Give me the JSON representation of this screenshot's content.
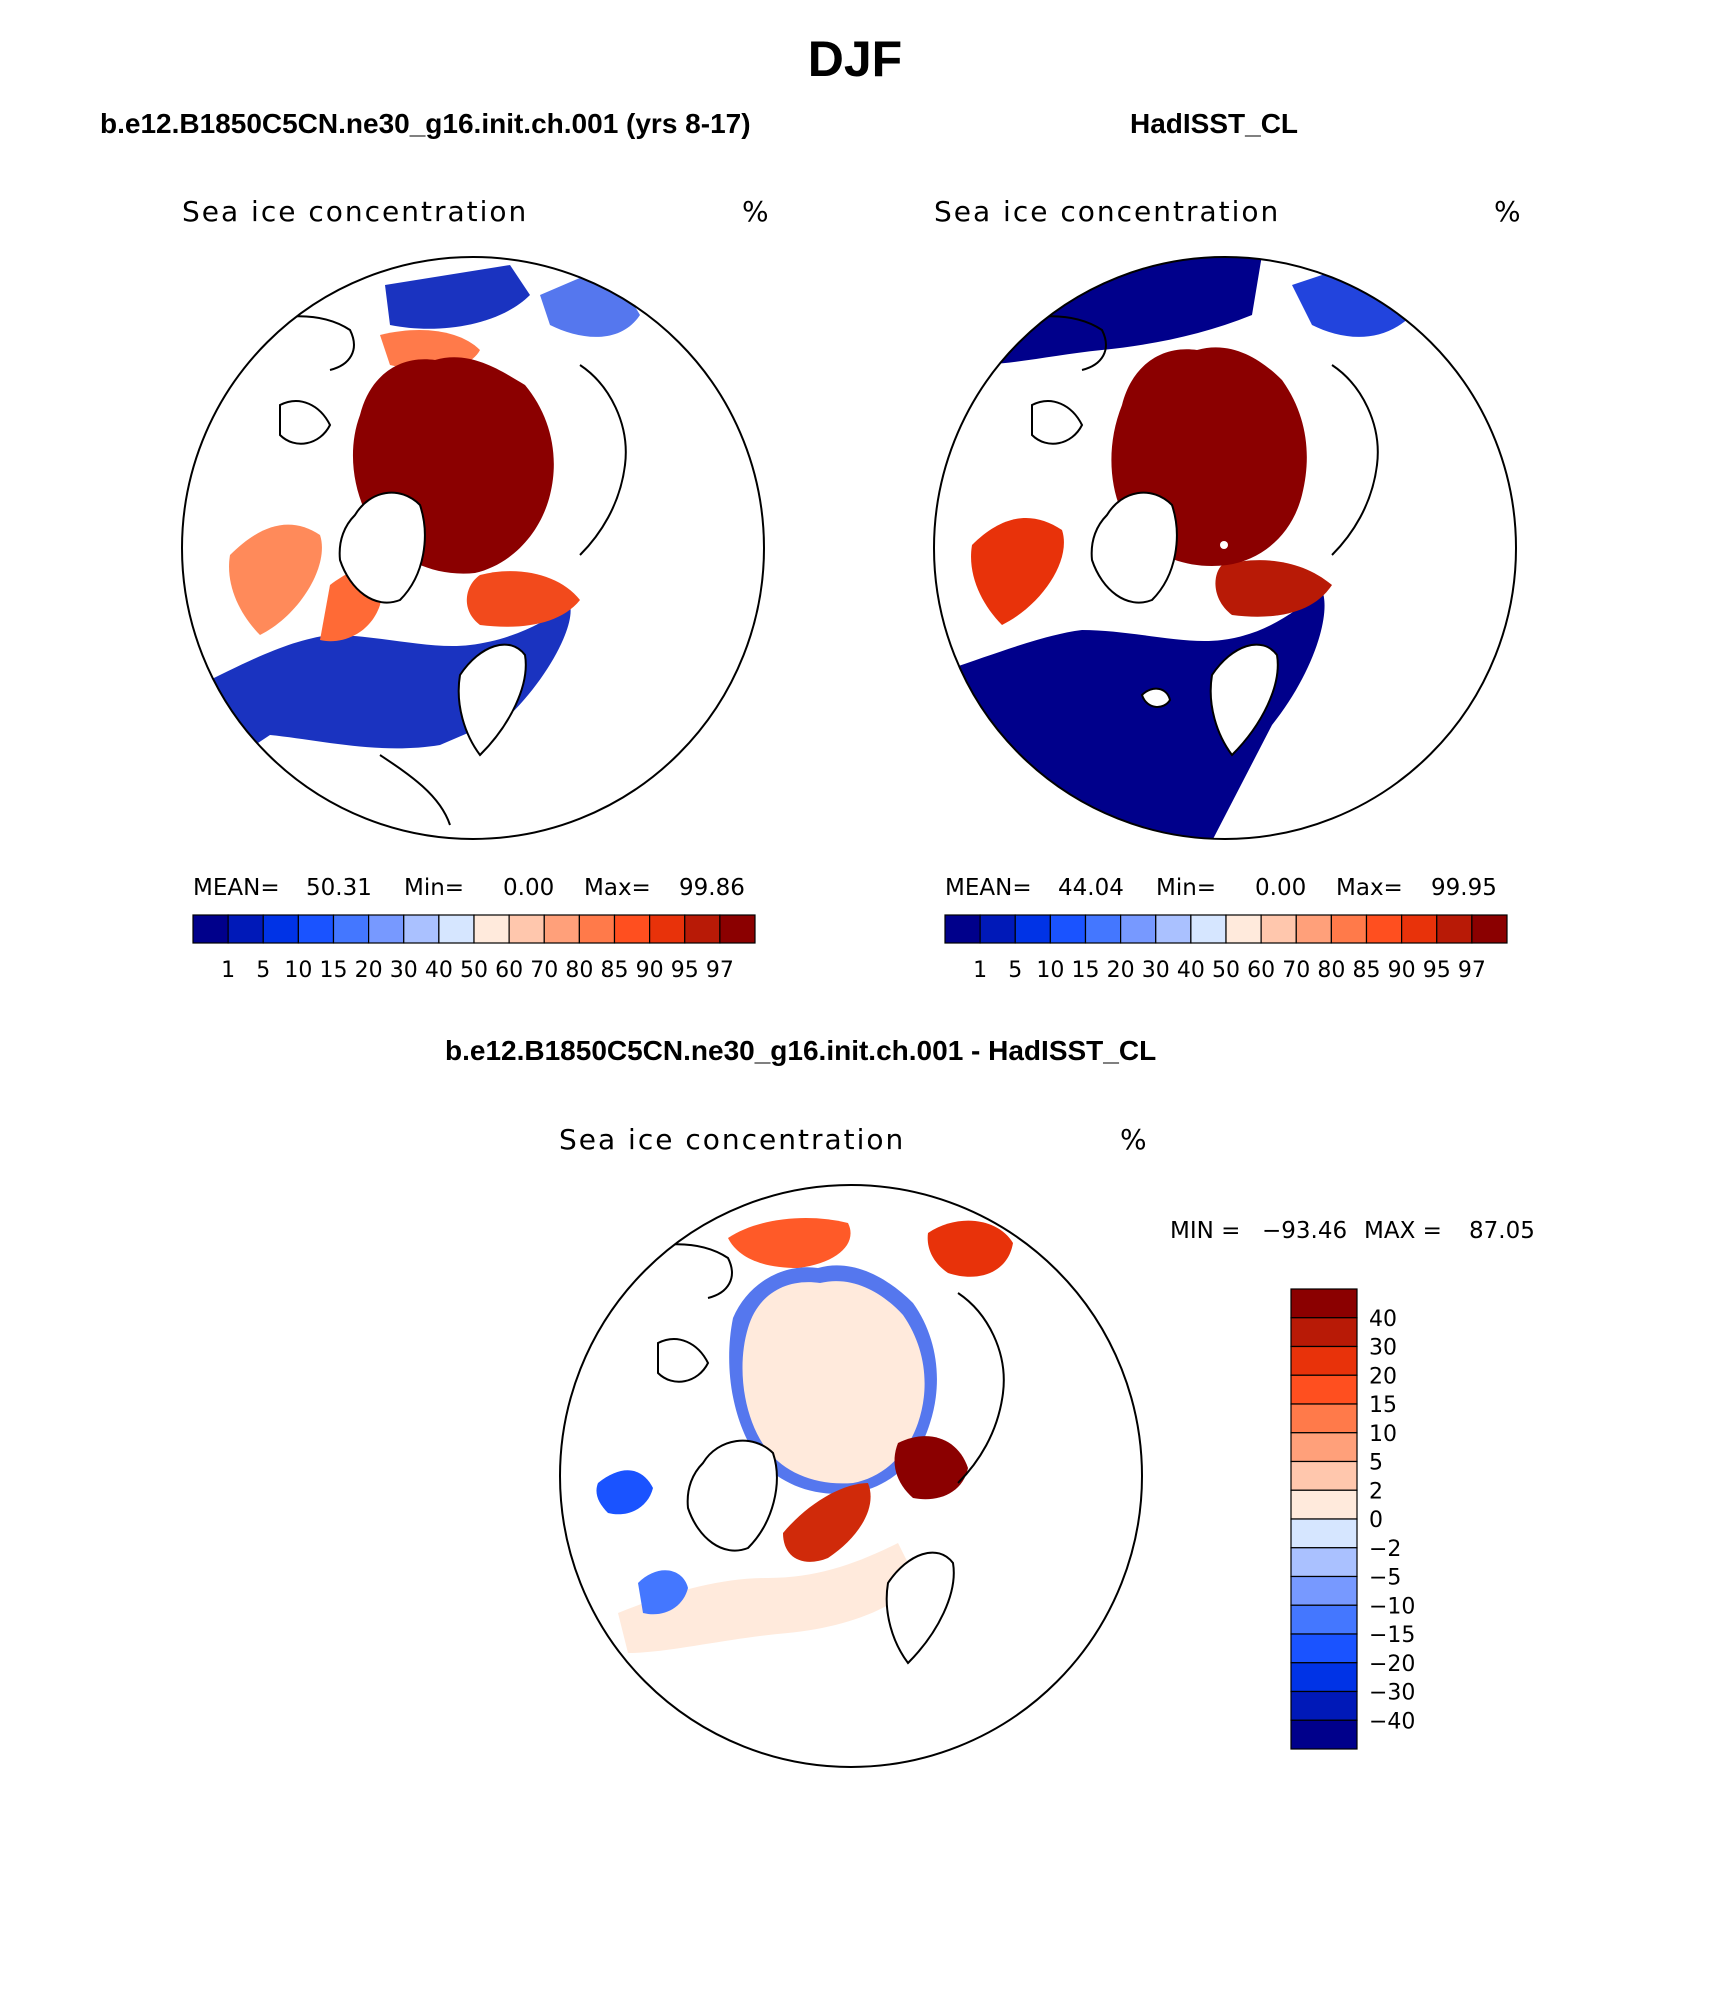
{
  "page": {
    "title": "DJF"
  },
  "panels": [
    {
      "id": "model",
      "title": "b.e12.B1850C5CN.ne30_g16.init.ch.001 (yrs 8-17)",
      "variable": "Sea ice concentration",
      "units": "%",
      "stats": {
        "mean_label": "MEAN=",
        "mean": "50.31",
        "min_label": "Min=",
        "min": "0.00",
        "max_label": "Max=",
        "max": "99.86"
      }
    },
    {
      "id": "obs",
      "title": "HadISST_CL",
      "variable": "Sea ice concentration",
      "units": "%",
      "stats": {
        "mean_label": "MEAN=",
        "mean": "44.04",
        "min_label": "Min=",
        "min": "0.00",
        "max_label": "Max=",
        "max": "99.95"
      }
    },
    {
      "id": "diff",
      "title": "b.e12.B1850C5CN.ne30_g16.init.ch.001 - HadISST_CL",
      "variable": "Sea ice concentration",
      "units": "%",
      "stats": {
        "min_label": "MIN =",
        "min": "−93.46",
        "max_label": "MAX =",
        "max": "87.05"
      }
    }
  ],
  "colorbars": {
    "concentration": {
      "colors": [
        "#00008b",
        "#0019b8",
        "#0033e6",
        "#1a53ff",
        "#4477ff",
        "#7799ff",
        "#aac1ff",
        "#d6e6ff",
        "#ffeadc",
        "#ffc7ad",
        "#ffa07a",
        "#ff7a4a",
        "#ff4f1f",
        "#e8320a",
        "#b81a06",
        "#8b0000"
      ],
      "labels": [
        "1",
        "5",
        "10",
        "15",
        "20",
        "30",
        "40",
        "50",
        "60",
        "70",
        "80",
        "85",
        "90",
        "95",
        "97"
      ]
    },
    "difference": {
      "colors": [
        "#8b0000",
        "#b81a06",
        "#e8320a",
        "#ff4f1f",
        "#ff7a4a",
        "#ffa07a",
        "#ffc7ad",
        "#ffeadc",
        "#d6e6ff",
        "#aac1ff",
        "#7799ff",
        "#4477ff",
        "#1a53ff",
        "#0033e6",
        "#0019b8",
        "#00008b"
      ],
      "labels": [
        "40",
        "30",
        "20",
        "15",
        "10",
        "5",
        "2",
        "0",
        "−2",
        "−5",
        "−10",
        "−15",
        "−20",
        "−30",
        "−40"
      ]
    }
  },
  "legend_colors": {
    "land": "#ffffff",
    "open_ocean": "#ffffff",
    "coastline": "#000000"
  }
}
